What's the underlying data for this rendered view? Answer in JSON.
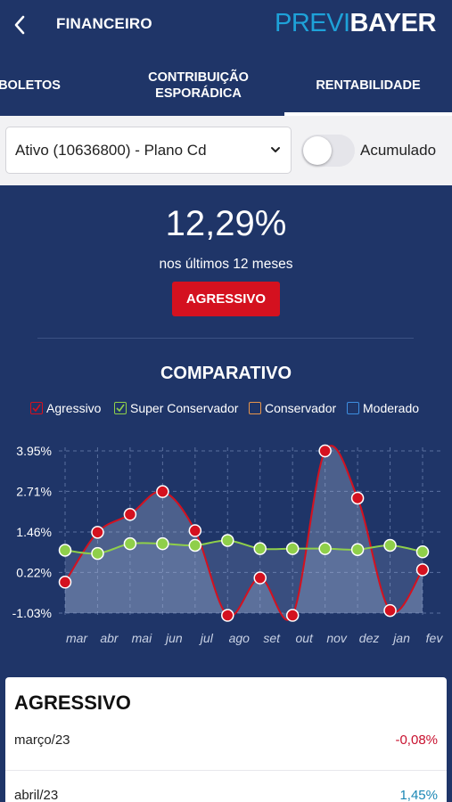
{
  "header": {
    "title": "FINANCEIRO",
    "logo_part1": "PREVI",
    "logo_part2": "BAYER"
  },
  "tabs": [
    {
      "label": "BOLETOS",
      "active": false
    },
    {
      "label": "CONTRIBUIÇÃO ESPORÁDICA",
      "active": false
    },
    {
      "label": "RENTABILIDADE",
      "active": true
    }
  ],
  "filter": {
    "plan_value": "Ativo (10636800) - Plano Cd",
    "toggle_label": "Acumulado",
    "toggle_on": false
  },
  "summary": {
    "value": "12,29%",
    "period": "nos últimos 12 meses",
    "profile": "AGRESSIVO"
  },
  "comparison": {
    "title": "COMPARATIVO",
    "legend": [
      {
        "label": "Agressivo",
        "checked": true,
        "color": "#d4111f"
      },
      {
        "label": "Super Conservador",
        "checked": true,
        "color": "#8fcf4a"
      },
      {
        "label": "Conservador",
        "checked": false,
        "color": "#e8954a"
      },
      {
        "label": "Moderado",
        "checked": false,
        "color": "#3e8ee0"
      }
    ]
  },
  "chart_data": {
    "type": "line",
    "categories": [
      "mar",
      "abr",
      "mai",
      "jun",
      "jul",
      "ago",
      "set",
      "out",
      "nov",
      "dez",
      "jan",
      "fev"
    ],
    "y_tick_labels": [
      "3.95%",
      "2.71%",
      "1.46%",
      "0.22%",
      "-1.03%"
    ],
    "y_ticks": [
      3.95,
      2.71,
      1.46,
      0.22,
      -1.03
    ],
    "ylim": [
      -1.03,
      3.95
    ],
    "grid": true,
    "series": [
      {
        "name": "Agressivo",
        "color": "#d4111f",
        "values": [
          -0.08,
          1.45,
          2.0,
          2.7,
          1.5,
          -1.1,
          0.05,
          -1.1,
          3.95,
          2.5,
          -0.95,
          0.3
        ]
      },
      {
        "name": "Super Conservador",
        "color": "#8fcf4a",
        "values": [
          0.9,
          0.8,
          1.1,
          1.1,
          1.05,
          1.2,
          0.95,
          0.95,
          0.95,
          0.92,
          1.05,
          0.85
        ]
      }
    ]
  },
  "detail": {
    "title": "AGRESSIVO",
    "rows": [
      {
        "month": "março/23",
        "value": "-0,08%",
        "value_color": "#c8102e"
      },
      {
        "month": "abril/23",
        "value": "1,45%",
        "value_color": "#1a87b5"
      }
    ]
  }
}
